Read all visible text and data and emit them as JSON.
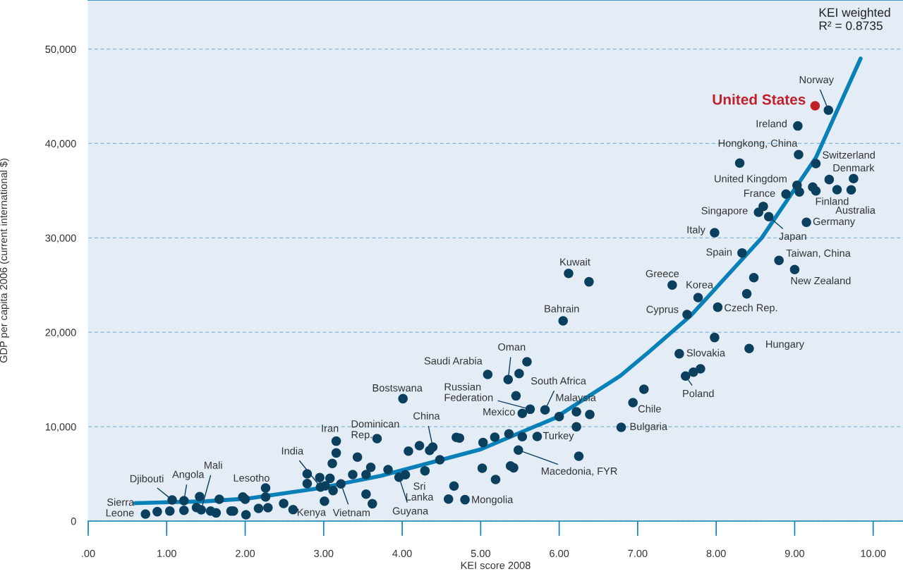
{
  "chart_data": {
    "type": "scatter",
    "xlabel": "KEI score 2008",
    "ylabel": "GDP per capita 2006 (current international $)",
    "xlim": [
      0,
      10.38
    ],
    "ylim": [
      0,
      55200
    ],
    "xticks": [
      {
        "value": 0,
        "label": ".00"
      },
      {
        "value": 1,
        "label": "1.00"
      },
      {
        "value": 2,
        "label": "2.00"
      },
      {
        "value": 3,
        "label": "3.00"
      },
      {
        "value": 4,
        "label": "4.00"
      },
      {
        "value": 5,
        "label": "5.00"
      },
      {
        "value": 6,
        "label": "6.00"
      },
      {
        "value": 7,
        "label": "7.00"
      },
      {
        "value": 8,
        "label": "8.00"
      },
      {
        "value": 9,
        "label": "9.00"
      },
      {
        "value": 10,
        "label": "10.00"
      }
    ],
    "yticks": [
      0,
      {
        "value": 10000,
        "label": "10,000"
      },
      {
        "value": 20000,
        "label": "20,000"
      },
      {
        "value": 30000,
        "label": "30,000"
      },
      {
        "value": 40000,
        "label": "40,000"
      },
      {
        "value": 50000,
        "label": "50,000"
      }
    ],
    "grid": "y",
    "marker": "circle",
    "legend": false,
    "series": [
      {
        "color": "#0b3f5e",
        "x": [
          0.73,
          0.88,
          1.04,
          1.07,
          1.22,
          1.22,
          1.42,
          1.38,
          1.44,
          1.56,
          1.63,
          1.67,
          1.82,
          1.85,
          1.97,
          2.0,
          2.01,
          2.17,
          2.26,
          2.26,
          2.29,
          2.49,
          2.61,
          2.79,
          2.79,
          2.95,
          2.96,
          3.02,
          3.01,
          3.08,
          3.11,
          3.16,
          3.16,
          3.12,
          3.22,
          3.37,
          3.43,
          3.54,
          3.6,
          3.54,
          3.62,
          3.68,
          4.01,
          3.82,
          3.96,
          4.04,
          4.08,
          4.22,
          4.39,
          4.35,
          4.29,
          4.48,
          4.66,
          4.59,
          4.8,
          4.69,
          4.73,
          5.02,
          5.03,
          5.18,
          5.19,
          5.09,
          5.35,
          5.49,
          5.59,
          5.45,
          5.63,
          5.53,
          5.82,
          5.36,
          5.53,
          5.72,
          5.48,
          5.38,
          5.42,
          6.0,
          6.22,
          6.39,
          6.22,
          6.25,
          6.79,
          6.94,
          7.08,
          6.12,
          6.38,
          6.05,
          7.44,
          7.63,
          9.43,
          9.04,
          9.05,
          8.3,
          9.27,
          9.44,
          9.75,
          9.03,
          9.06,
          9.23,
          9.27,
          9.54,
          9.72,
          8.89,
          8.6,
          8.54,
          8.67,
          9.15,
          7.98,
          8.33,
          8.8,
          9.0,
          8.48,
          7.77,
          8.39,
          8.02,
          7.98,
          8.42,
          7.53,
          7.8,
          7.71,
          7.61
        ],
        "values": [
          750,
          1000,
          1070,
          2240,
          2170,
          1140,
          2590,
          1440,
          1200,
          1070,
          870,
          2320,
          1070,
          1070,
          2560,
          2320,
          670,
          1340,
          3510,
          2560,
          1420,
          1870,
          1220,
          5000,
          3980,
          4610,
          3610,
          3730,
          2110,
          4530,
          6100,
          7220,
          8470,
          3240,
          3940,
          4930,
          6780,
          4930,
          5700,
          2860,
          1840,
          8740,
          12970,
          5450,
          4650,
          4910,
          7420,
          7990,
          7840,
          7490,
          5330,
          6500,
          3710,
          2340,
          2270,
          8870,
          8790,
          5600,
          8320,
          8890,
          4410,
          15540,
          14990,
          15630,
          16880,
          13270,
          11850,
          11410,
          11780,
          9240,
          8940,
          8960,
          7520,
          5850,
          5650,
          11080,
          11580,
          11300,
          9990,
          6870,
          9940,
          12550,
          13970,
          26240,
          25350,
          21210,
          25000,
          21890,
          43530,
          41860,
          38820,
          37930,
          37870,
          36180,
          36280,
          35580,
          34860,
          35390,
          34980,
          35110,
          35090,
          34640,
          33340,
          32720,
          32250,
          31650,
          30550,
          28410,
          27620,
          26650,
          25790,
          23680,
          24080,
          22660,
          19450,
          18280,
          17730,
          16140,
          15780,
          15370
        ]
      },
      {
        "name": "United States",
        "color": "#c0202a",
        "x": [
          9.26
        ],
        "values": [
          44000
        ]
      },
      {
        "type": "line",
        "marker": "none",
        "color": "#0a80b8",
        "x": [
          0.6,
          1.5,
          2.05,
          2.95,
          3.73,
          5.0,
          5.94,
          6.78,
          7.14,
          7.68,
          8.58,
          9.27,
          9.84
        ],
        "values": [
          1900,
          2100,
          2400,
          3500,
          4800,
          7600,
          10900,
          15400,
          17900,
          21800,
          30000,
          38500,
          49000
        ]
      }
    ],
    "annotations": [
      "KEI weighted\nR² = 0.8735",
      {
        "text": "Sierra\nLeone",
        "x": 0.73,
        "y": 750
      },
      {
        "text": "Djibouti",
        "x": 1.07,
        "y": 2240
      },
      {
        "text": "Angola",
        "x": 1.22,
        "y": 2170
      },
      {
        "text": "Mali",
        "x": 1.44,
        "y": 1200
      },
      {
        "text": "Lesotho",
        "x": 2.26,
        "y": 3510
      },
      {
        "text": "Kenya",
        "x": 2.61,
        "y": 1220
      },
      {
        "text": "India",
        "x": 2.96,
        "y": 3610
      },
      {
        "text": "Iran",
        "x": 3.16,
        "y": 8470
      },
      {
        "text": "Vietnam",
        "x": 3.22,
        "y": 3940
      },
      {
        "text": "Dominican\nRep.",
        "x": 3.68,
        "y": 8740
      },
      {
        "text": "Bostswana",
        "x": 4.01,
        "y": 12970
      },
      {
        "text": "China",
        "x": 4.39,
        "y": 7840
      },
      {
        "text": "Sri\nLanka",
        "x": 4.04,
        "y": 4910
      },
      {
        "text": "Guyana",
        "x": 3.96,
        "y": 4650
      },
      {
        "text": "Mongolia",
        "x": 4.8,
        "y": 2270
      },
      {
        "text": "Saudi Arabia",
        "x": 5.09,
        "y": 15540
      },
      {
        "text": "Oman",
        "x": 5.35,
        "y": 14990
      },
      {
        "text": "Russian\nFederation",
        "x": 5.63,
        "y": 11850
      },
      {
        "text": "Mexico",
        "x": 5.53,
        "y": 11410
      },
      {
        "text": "South Africa",
        "x": 5.82,
        "y": 11780
      },
      {
        "text": "Malaysia",
        "x": 6.22,
        "y": 11580
      },
      {
        "text": "Turkey",
        "x": 5.72,
        "y": 8960
      },
      {
        "text": "Macedonia, FYR",
        "x": 5.48,
        "y": 7520
      },
      {
        "text": "Bulgaria",
        "x": 6.79,
        "y": 9940
      },
      {
        "text": "Chile",
        "x": 6.94,
        "y": 12550
      },
      {
        "text": "Kuwait",
        "x": 6.12,
        "y": 26240
      },
      {
        "text": "Bahrain",
        "x": 6.05,
        "y": 21210
      },
      {
        "text": "Greece",
        "x": 7.44,
        "y": 25000
      },
      {
        "text": "Cyprus",
        "x": 7.63,
        "y": 21890
      },
      {
        "text": "Korea",
        "x": 7.77,
        "y": 23680
      },
      {
        "text": "Czech Rep.",
        "x": 8.02,
        "y": 22660
      },
      {
        "text": "Hungary",
        "x": 8.42,
        "y": 18280
      },
      {
        "text": "Slovakia",
        "x": 7.53,
        "y": 17730
      },
      {
        "text": "Poland",
        "x": 7.61,
        "y": 15370
      },
      {
        "text": "Italy",
        "x": 7.98,
        "y": 30550
      },
      {
        "text": "Spain",
        "x": 8.33,
        "y": 28410
      },
      {
        "text": "Taiwan, China",
        "x": 8.8,
        "y": 27620
      },
      {
        "text": "New Zealand",
        "x": 9.0,
        "y": 26650
      },
      {
        "text": "Singapore",
        "x": 8.54,
        "y": 32720
      },
      {
        "text": "Japan",
        "x": 8.67,
        "y": 32250
      },
      {
        "text": "Germany",
        "x": 9.15,
        "y": 31650
      },
      {
        "text": "France",
        "x": 8.89,
        "y": 34640
      },
      {
        "text": "United Kingdom",
        "x": 9.03,
        "y": 35580
      },
      {
        "text": "Finland",
        "x": 9.27,
        "y": 34980
      },
      {
        "text": "Australia",
        "x": 9.72,
        "y": 35090
      },
      {
        "text": "Denmark",
        "x": 9.75,
        "y": 36280
      },
      {
        "text": "Switzerland",
        "x": 9.27,
        "y": 37870
      },
      {
        "text": "Hongkong, China",
        "x": 9.05,
        "y": 38820
      },
      {
        "text": "Ireland",
        "x": 9.04,
        "y": 41860
      },
      {
        "text": "Norway",
        "x": 9.43,
        "y": 43530
      }
    ]
  }
}
